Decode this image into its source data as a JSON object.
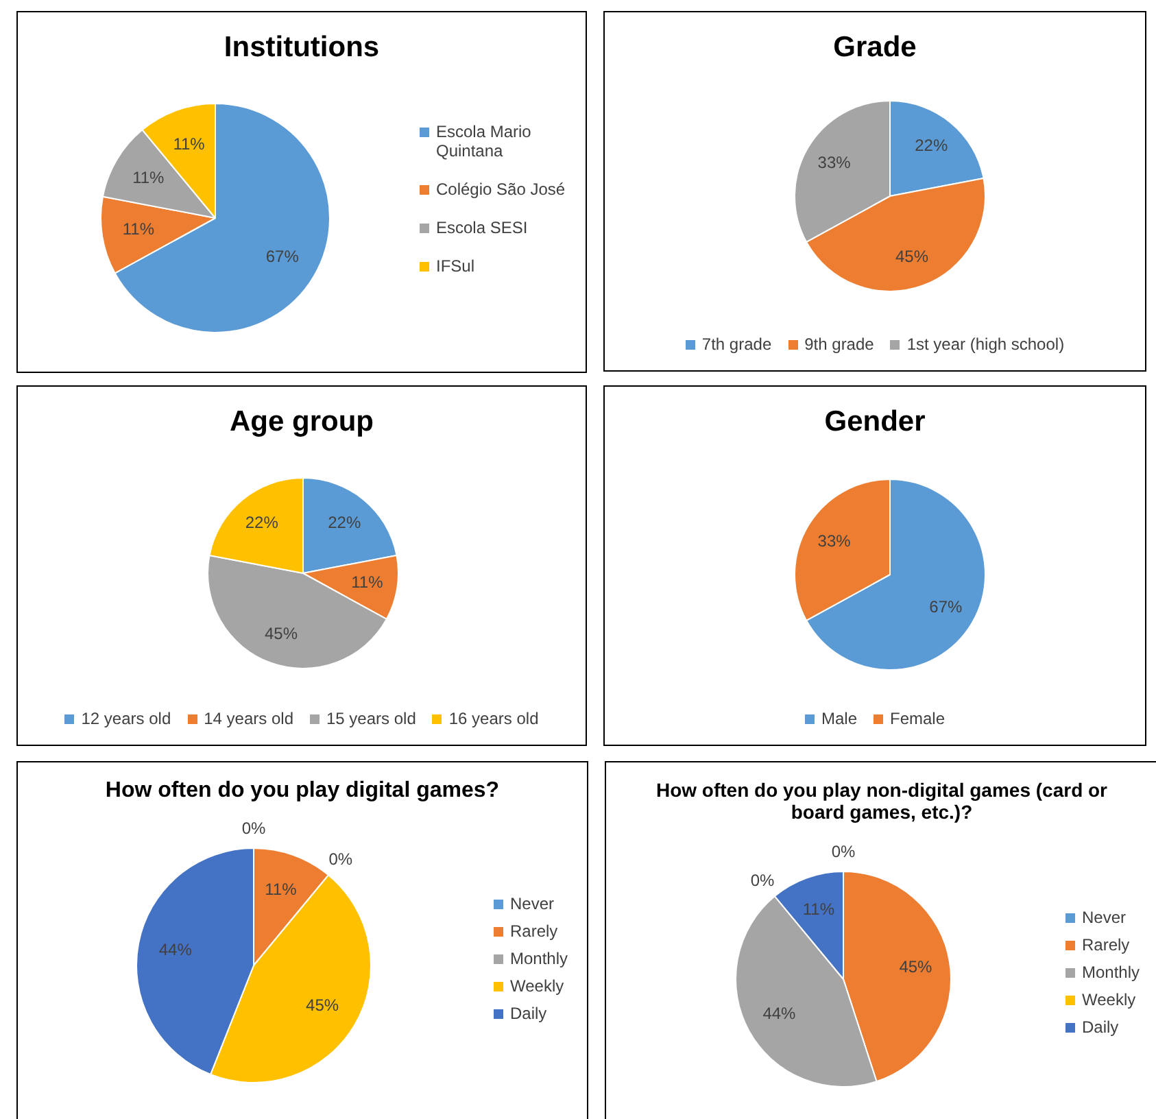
{
  "chart_data": [
    {
      "type": "pie",
      "title": "Institutions",
      "categories": [
        "Escola Mario Quintana",
        "Colégio São José",
        "Escola SESI",
        "IFSul"
      ],
      "values": [
        67,
        11,
        11,
        11
      ],
      "value_labels": [
        "67%",
        "11%",
        "11%",
        "11%"
      ],
      "colors": [
        "#5b9bd5",
        "#ed7d31",
        "#a5a5a5",
        "#ffc000"
      ],
      "legend": "right"
    },
    {
      "type": "pie",
      "title": "Grade",
      "categories": [
        "7th grade",
        "9th grade",
        "1st year (high school)"
      ],
      "values": [
        22,
        45,
        33
      ],
      "value_labels": [
        "22%",
        "45%",
        "33%"
      ],
      "colors": [
        "#5b9bd5",
        "#ed7d31",
        "#a5a5a5"
      ],
      "legend": "bottom"
    },
    {
      "type": "pie",
      "title": "Age group",
      "categories": [
        "12 years old",
        "14 years old",
        "15 years old",
        "16 years old"
      ],
      "values": [
        22,
        11,
        45,
        22
      ],
      "value_labels": [
        "22%",
        "11%",
        "45%",
        "22%"
      ],
      "colors": [
        "#5b9bd5",
        "#ed7d31",
        "#a5a5a5",
        "#ffc000"
      ],
      "legend": "bottom"
    },
    {
      "type": "pie",
      "title": "Gender",
      "categories": [
        "Male",
        "Female"
      ],
      "values": [
        67,
        33
      ],
      "value_labels": [
        "67%",
        "33%"
      ],
      "colors": [
        "#5b9bd5",
        "#ed7d31"
      ],
      "legend": "bottom"
    },
    {
      "type": "pie",
      "title": "How often do you play digital games?",
      "categories": [
        "Never",
        "Rarely",
        "Monthly",
        "Weekly",
        "Daily"
      ],
      "values": [
        0,
        11,
        0,
        45,
        44
      ],
      "value_labels": [
        "0%",
        "11%",
        "0%",
        "45%",
        "44%"
      ],
      "colors": [
        "#5b9bd5",
        "#ed7d31",
        "#a5a5a5",
        "#ffc000",
        "#4472c4"
      ],
      "legend": "right"
    },
    {
      "type": "pie",
      "title": "How often do you play non-digital games (card or board games, etc.)?",
      "categories": [
        "Never",
        "Rarely",
        "Monthly",
        "Weekly",
        "Daily"
      ],
      "values": [
        0,
        45,
        44,
        0,
        11
      ],
      "value_labels": [
        "0%",
        "45%",
        "44%",
        "0%",
        "11%"
      ],
      "colors": [
        "#5b9bd5",
        "#ed7d31",
        "#a5a5a5",
        "#ffc000",
        "#4472c4"
      ],
      "legend": "right"
    }
  ]
}
